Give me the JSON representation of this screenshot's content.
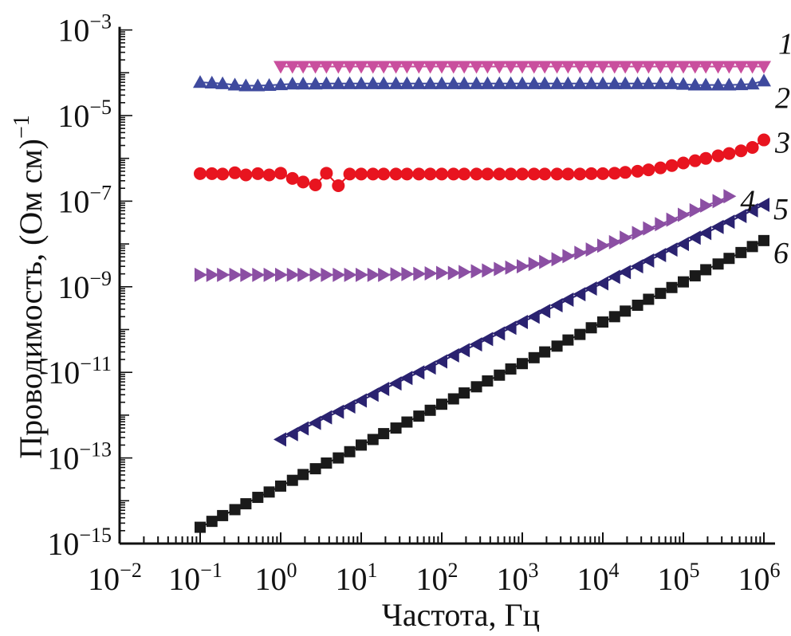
{
  "chart_data": {
    "type": "scatter",
    "title": "",
    "xlabel": "Частота, Гц",
    "ylabel": "Проводимость, (Ом см)",
    "ylabel_exp": "−1",
    "xscale": "log",
    "yscale": "log",
    "xlim": [
      0.01,
      1200000
    ],
    "ylim": [
      1e-15,
      0.001
    ],
    "grid": false,
    "x_ticks": [
      {
        "value": 0.01,
        "base": "10",
        "exp": "−2"
      },
      {
        "value": 0.1,
        "base": "10",
        "exp": "−1"
      },
      {
        "value": 1,
        "base": "10",
        "exp": "0"
      },
      {
        "value": 10,
        "base": "10",
        "exp": "1"
      },
      {
        "value": 100,
        "base": "10",
        "exp": "2"
      },
      {
        "value": 1000,
        "base": "10",
        "exp": "3"
      },
      {
        "value": 10000,
        "base": "10",
        "exp": "4"
      },
      {
        "value": 100000,
        "base": "10",
        "exp": "5"
      },
      {
        "value": 1000000,
        "base": "10",
        "exp": "6"
      }
    ],
    "y_ticks": [
      {
        "value": 1e-15,
        "base": "10",
        "exp": "−15"
      },
      {
        "value": 1e-13,
        "base": "10",
        "exp": "−13"
      },
      {
        "value": 1e-11,
        "base": "10",
        "exp": "−11"
      },
      {
        "value": 1e-09,
        "base": "10",
        "exp": "−9"
      },
      {
        "value": 1e-07,
        "base": "10",
        "exp": "−7"
      },
      {
        "value": 1e-05,
        "base": "10",
        "exp": "−5"
      },
      {
        "value": 0.001,
        "base": "10",
        "exp": "−3"
      }
    ],
    "x": [
      0.1,
      0.14,
      0.19,
      0.27,
      0.37,
      0.52,
      0.72,
      1,
      1.4,
      1.9,
      2.7,
      3.7,
      5.2,
      7.2,
      10,
      14,
      19,
      27,
      37,
      52,
      72,
      100,
      140,
      190,
      270,
      370,
      520,
      720,
      1000,
      1400,
      1900,
      2700,
      3700,
      5200,
      7200,
      10000,
      14000,
      19000,
      27000,
      37000,
      52000,
      72000,
      100000,
      140000,
      190000,
      270000,
      370000,
      520000,
      720000,
      1000000
    ],
    "series": [
      {
        "name": "1",
        "marker": "triangle-down",
        "color": "#c94f9e",
        "values": [
          null,
          null,
          null,
          null,
          null,
          null,
          null,
          0.00014,
          0.00014,
          0.00014,
          0.00014,
          0.00014,
          0.00014,
          0.00014,
          0.00014,
          0.00014,
          0.00014,
          0.00014,
          0.00014,
          0.00014,
          0.00014,
          0.00014,
          0.00014,
          0.00014,
          0.00014,
          0.00014,
          0.00014,
          0.00014,
          0.00014,
          0.00014,
          0.00014,
          0.00014,
          0.00014,
          0.00014,
          0.00014,
          0.00014,
          0.00014,
          0.00014,
          0.00014,
          0.00014,
          0.00014,
          0.00014,
          0.00014,
          0.00014,
          0.00014,
          0.00014,
          0.00014,
          0.00014,
          0.00014,
          0.00014
        ]
      },
      {
        "name": "2",
        "marker": "triangle-up",
        "color": "#3f4a9e",
        "values": [
          6e-05,
          5.8e-05,
          5.6e-05,
          5.2e-05,
          5e-05,
          5e-05,
          5.1e-05,
          5.3e-05,
          5.5e-05,
          5.5e-05,
          5.5e-05,
          5.6e-05,
          5.6e-05,
          5.6e-05,
          5.6e-05,
          5.6e-05,
          5.6e-05,
          5.6e-05,
          5.6e-05,
          5.6e-05,
          5.6e-05,
          5.6e-05,
          5.6e-05,
          5.6e-05,
          5.6e-05,
          5.6e-05,
          5.6e-05,
          5.6e-05,
          5.6e-05,
          5.6e-05,
          5.6e-05,
          5.6e-05,
          5.6e-05,
          5.6e-05,
          5.6e-05,
          5.6e-05,
          5.6e-05,
          5.6e-05,
          5.6e-05,
          5.6e-05,
          5.6e-05,
          5.6e-05,
          5.4e-05,
          5.2e-05,
          5.2e-05,
          5.2e-05,
          5.2e-05,
          5.3e-05,
          5.5e-05,
          6.5e-05
        ]
      },
      {
        "name": "3",
        "marker": "circle",
        "color": "#e8141f",
        "values": [
          4.4e-07,
          4.4e-07,
          4.3e-07,
          4.6e-07,
          4.1e-07,
          4.4e-07,
          4.1e-07,
          4.5e-07,
          3.4e-07,
          2.8e-07,
          2.4e-07,
          4.5e-07,
          2.3e-07,
          4.3e-07,
          4.3e-07,
          4.3e-07,
          4.3e-07,
          4.3e-07,
          4.3e-07,
          4.3e-07,
          4.3e-07,
          4.3e-07,
          4.3e-07,
          4.3e-07,
          4.3e-07,
          4.3e-07,
          4.3e-07,
          4.3e-07,
          4.3e-07,
          4.3e-07,
          4.3e-07,
          4.3e-07,
          4.3e-07,
          4.3e-07,
          4.4e-07,
          4.4e-07,
          4.5e-07,
          4.7e-07,
          5e-07,
          5.4e-07,
          6e-07,
          6.8e-07,
          7.8e-07,
          8.8e-07,
          1e-06,
          1.15e-06,
          1.3e-06,
          1.5e-06,
          1.8e-06,
          2.7e-06
        ]
      },
      {
        "name": "4",
        "marker": "triangle-right",
        "color": "#8b4fa3",
        "values": [
          1.9e-09,
          1.9e-09,
          1.9e-09,
          1.9e-09,
          1.9e-09,
          1.9e-09,
          1.9e-09,
          1.9e-09,
          1.9e-09,
          1.9e-09,
          1.9e-09,
          1.9e-09,
          1.9e-09,
          1.9e-09,
          1.9e-09,
          1.9e-09,
          1.9e-09,
          1.95e-09,
          1.98e-09,
          2e-09,
          2.05e-09,
          2.1e-09,
          2.1e-09,
          2.2e-09,
          2.3e-09,
          2.4e-09,
          2.6e-09,
          2.8e-09,
          3e-09,
          3.4e-09,
          3.8e-09,
          4.4e-09,
          5.2e-09,
          6.2e-09,
          7.4e-09,
          9.1e-09,
          1.1e-08,
          1.4e-08,
          1.8e-08,
          2.3e-08,
          2.9e-08,
          3.7e-08,
          4.8e-08,
          6.1e-08,
          7.9e-08,
          1e-07,
          1.3e-07,
          null,
          null,
          null
        ]
      },
      {
        "name": "5",
        "marker": "triangle-left",
        "color": "#2a2270",
        "values": [
          null,
          null,
          null,
          null,
          null,
          null,
          null,
          2.7e-13,
          3.6e-13,
          4.9e-13,
          6.6e-13,
          8.9e-13,
          1.2e-12,
          1.6e-12,
          2.2e-12,
          3e-12,
          4.1e-12,
          5.5e-12,
          7.4e-12,
          1e-11,
          1.3e-11,
          1.8e-11,
          2.5e-11,
          3.3e-11,
          4.5e-11,
          6e-11,
          8.1e-11,
          1.1e-10,
          1.5e-10,
          2e-10,
          2.7e-10,
          3.7e-10,
          5e-10,
          6.7e-10,
          9.1e-10,
          1.2e-09,
          1.7e-09,
          2.2e-09,
          3e-09,
          4.1e-09,
          5.5e-09,
          7.4e-09,
          1e-08,
          1.4e-08,
          1.8e-08,
          2.5e-08,
          3.3e-08,
          4.5e-08,
          6.1e-08,
          8.2e-08
        ]
      },
      {
        "name": "6",
        "marker": "square",
        "color": "#1a1a1a",
        "values": [
          2.4e-15,
          3.3e-15,
          4.5e-15,
          6.2e-15,
          8.5e-15,
          1.2e-14,
          1.6e-14,
          2.2e-14,
          3e-14,
          4.1e-14,
          5.6e-14,
          7.6e-14,
          1e-13,
          1.4e-13,
          2e-13,
          2.7e-13,
          3.7e-13,
          5e-13,
          6.9e-13,
          9.5e-13,
          1.3e-12,
          1.8e-12,
          2.4e-12,
          3.3e-12,
          4.6e-12,
          6.3e-12,
          8.6e-12,
          1.2e-11,
          1.6e-11,
          2.2e-11,
          3e-11,
          4.1e-11,
          5.7e-11,
          7.7e-11,
          1.1e-10,
          1.5e-10,
          2e-10,
          2.7e-10,
          3.7e-10,
          5.1e-10,
          7e-10,
          9.6e-10,
          1.3e-09,
          1.8e-09,
          2.5e-09,
          3.4e-09,
          4.6e-09,
          6.3e-09,
          8.7e-09,
          1.2e-08
        ]
      }
    ],
    "annotations": [
      {
        "text": "1",
        "series": "1"
      },
      {
        "text": "2",
        "series": "2"
      },
      {
        "text": "3",
        "series": "3"
      },
      {
        "text": "4",
        "series": "4"
      },
      {
        "text": "5",
        "series": "5"
      },
      {
        "text": "6",
        "series": "6"
      }
    ]
  }
}
